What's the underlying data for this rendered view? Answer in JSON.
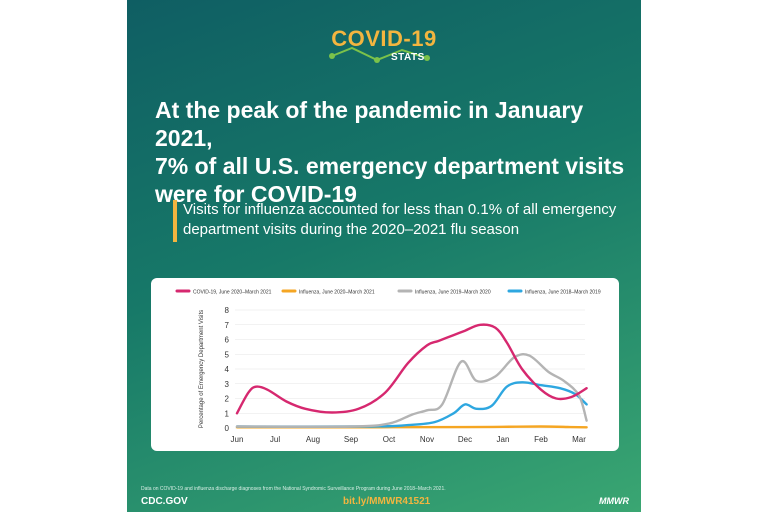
{
  "logo": {
    "title": "COVID-19",
    "subtitle": "STATS"
  },
  "headline": {
    "line1": "At the peak of the pandemic in January 2021,",
    "line2": "7% of all U.S. emergency department visits",
    "line3": "were for COVID-19"
  },
  "subheading": {
    "line1": "Visits for influenza accounted for less than 0.1% of all emergency",
    "line2": "department visits during the 2020–2021 flu season"
  },
  "footer": {
    "footnote": "Data on COVID-19 and influenza discharge diagnoses from the National Syndromic Surveillance Program during June 2018–March 2021.",
    "site": "CDC.GOV",
    "link": "bit.ly/MMWR41521",
    "brand": "MMWR"
  },
  "colors": {
    "covid": "#d6286f",
    "flu_2020": "#f5a623",
    "flu_2019": "#b4b4b4",
    "flu_2018": "#2ea7e0",
    "accent": "#f3b53f"
  },
  "chart_data": {
    "type": "line",
    "title": "",
    "xlabel": "",
    "ylabel": "Percentage of Emergency Department Visits",
    "categories": [
      "Jun",
      "Jul",
      "Aug",
      "Sep",
      "Oct",
      "Nov",
      "Dec",
      "Jan",
      "Feb",
      "Mar"
    ],
    "ylim": [
      0,
      8
    ],
    "yticks": [
      0,
      1,
      2,
      3,
      4,
      5,
      6,
      7,
      8
    ],
    "grid": true,
    "legend_position": "top",
    "series": [
      {
        "name": "COVID-19, June 2020–March 2021",
        "color": "#d6286f",
        "points": [
          [
            0,
            1.0
          ],
          [
            0.3,
            2.4
          ],
          [
            0.5,
            2.8
          ],
          [
            0.8,
            2.6
          ],
          [
            1.3,
            1.8
          ],
          [
            1.8,
            1.3
          ],
          [
            2.5,
            1.05
          ],
          [
            3.2,
            1.3
          ],
          [
            3.9,
            2.4
          ],
          [
            4.5,
            4.4
          ],
          [
            5.0,
            5.6
          ],
          [
            5.3,
            5.9
          ],
          [
            5.7,
            6.3
          ],
          [
            6.0,
            6.6
          ],
          [
            6.4,
            7.0
          ],
          [
            6.8,
            6.8
          ],
          [
            7.1,
            5.8
          ],
          [
            7.5,
            4.0
          ],
          [
            8.0,
            2.6
          ],
          [
            8.4,
            2.0
          ],
          [
            8.8,
            2.1
          ],
          [
            9.2,
            2.7
          ]
        ]
      },
      {
        "name": "Influenza, June 2020–March 2021",
        "color": "#f5a623",
        "points": [
          [
            0,
            0.05
          ],
          [
            3,
            0.05
          ],
          [
            6,
            0.06
          ],
          [
            7,
            0.08
          ],
          [
            8,
            0.1
          ],
          [
            8.7,
            0.07
          ],
          [
            9.2,
            0.05
          ]
        ]
      },
      {
        "name": "Influenza, June 2019–March 2020",
        "color": "#b4b4b4",
        "points": [
          [
            0,
            0.1
          ],
          [
            3,
            0.1
          ],
          [
            4,
            0.3
          ],
          [
            4.6,
            0.9
          ],
          [
            5.0,
            1.2
          ],
          [
            5.4,
            1.6
          ],
          [
            5.9,
            4.5
          ],
          [
            6.3,
            3.2
          ],
          [
            6.8,
            3.5
          ],
          [
            7.3,
            4.8
          ],
          [
            7.7,
            4.9
          ],
          [
            8.2,
            3.8
          ],
          [
            8.6,
            3.2
          ],
          [
            9.0,
            2.2
          ],
          [
            9.2,
            0.5
          ]
        ]
      },
      {
        "name": "Influenza, June 2018–March 2019",
        "color": "#2ea7e0",
        "points": [
          [
            0,
            0.1
          ],
          [
            3.5,
            0.1
          ],
          [
            4.5,
            0.2
          ],
          [
            5.2,
            0.4
          ],
          [
            5.7,
            1.0
          ],
          [
            6.0,
            1.6
          ],
          [
            6.3,
            1.3
          ],
          [
            6.7,
            1.5
          ],
          [
            7.1,
            2.8
          ],
          [
            7.5,
            3.1
          ],
          [
            8.0,
            2.9
          ],
          [
            8.5,
            2.7
          ],
          [
            8.9,
            2.3
          ],
          [
            9.2,
            1.6
          ]
        ]
      }
    ]
  }
}
